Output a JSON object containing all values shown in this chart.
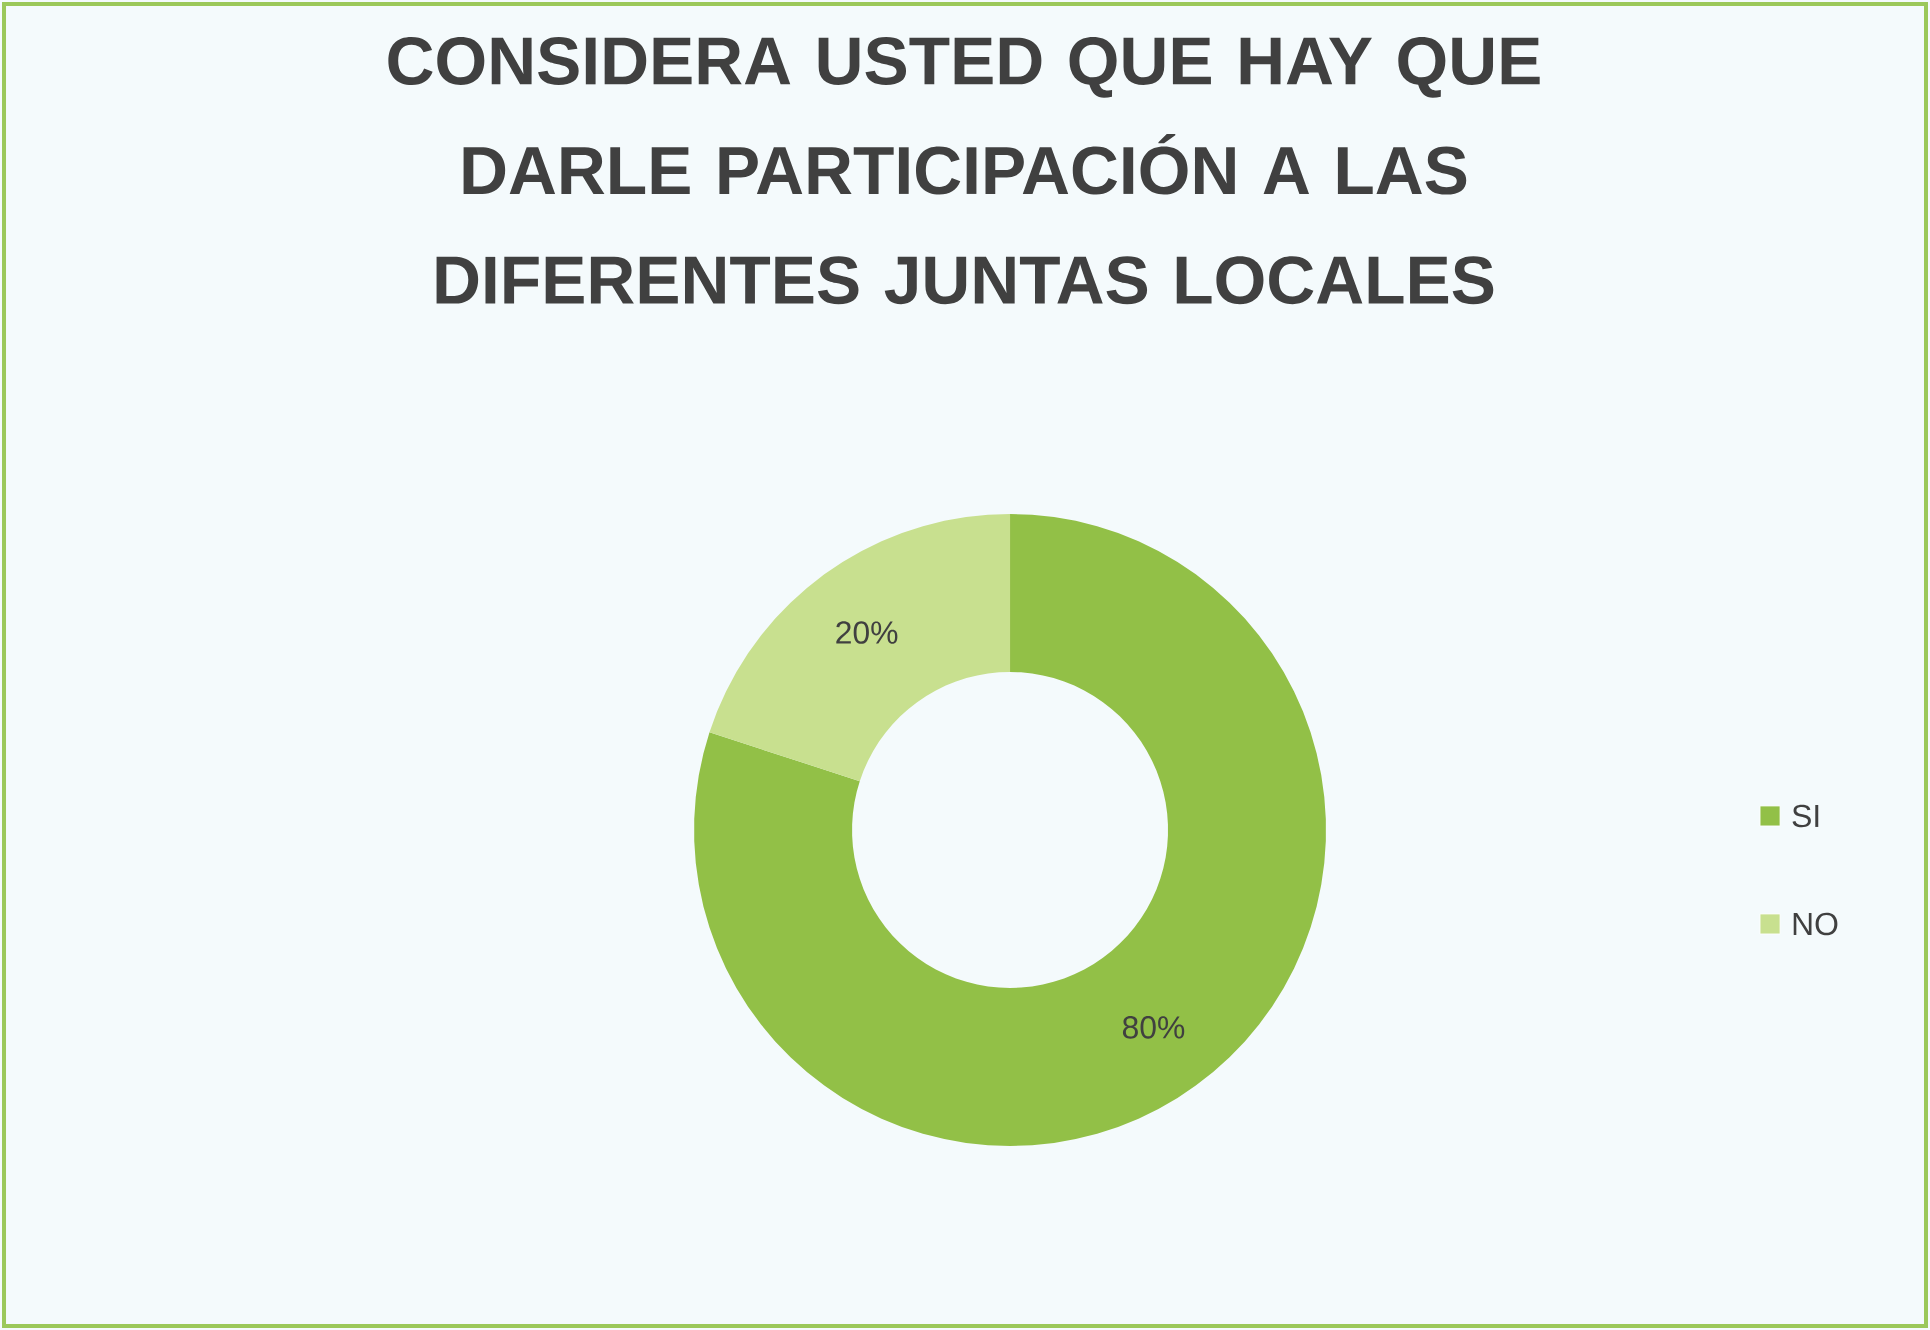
{
  "chart_data": {
    "type": "donut",
    "title": "CONSIDERA USTED QUE HAY QUE DARLE PARTICIPACIÓN A LAS DIFERENTES JUNTAS LOCALES",
    "categories": [
      "SI",
      "NO"
    ],
    "values": [
      80,
      20
    ],
    "value_labels": [
      "80%",
      "20%"
    ],
    "colors": [
      "#92c047",
      "#c8e08f"
    ],
    "legend": "right"
  }
}
